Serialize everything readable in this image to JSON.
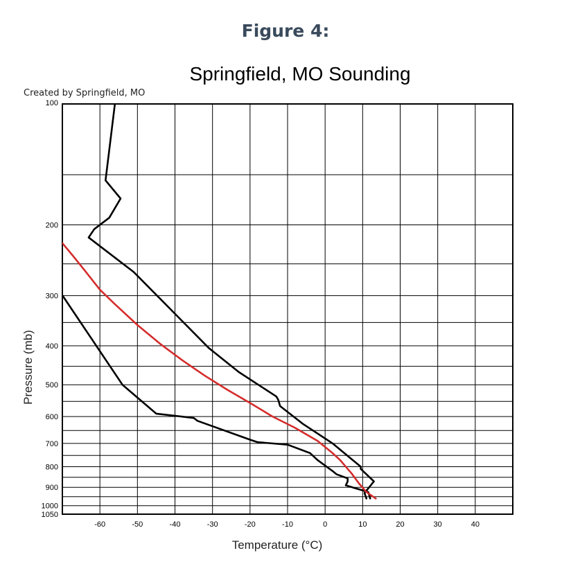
{
  "figure_label": "Figure 4:",
  "chart_data": {
    "type": "line",
    "title": "Springfield, MO  Sounding",
    "subtitle": "Created by Springfield, MO",
    "xlabel": "Temperature (°C)",
    "ylabel": "Pressure (mb)",
    "xlim": [
      -70,
      50
    ],
    "ylim": [
      1050,
      100
    ],
    "y_scale": "log",
    "x_ticks": [
      -60,
      -50,
      -40,
      -30,
      -20,
      -10,
      0,
      10,
      20,
      30,
      40
    ],
    "y_ticks": [
      100,
      200,
      300,
      400,
      500,
      600,
      700,
      800,
      900,
      1000,
      1050
    ],
    "y_gridlines": [
      100,
      150,
      200,
      250,
      300,
      350,
      400,
      450,
      500,
      550,
      600,
      650,
      700,
      750,
      800,
      850,
      900,
      950,
      1000,
      1050
    ],
    "grid": true,
    "series": [
      {
        "color": "#000000",
        "points": [
          [
            11,
            960
          ],
          [
            10.5,
            930
          ],
          [
            13,
            870
          ],
          [
            9.5,
            810
          ],
          [
            9.5,
            800
          ],
          [
            2,
            700
          ],
          [
            -6,
            625
          ],
          [
            -12,
            565
          ],
          [
            -12.5,
            545
          ],
          [
            -13,
            535
          ],
          [
            -23,
            465
          ],
          [
            -31,
            405
          ],
          [
            -44,
            305
          ],
          [
            -51,
            262
          ],
          [
            -63,
            215
          ],
          [
            -61.5,
            205
          ],
          [
            -57.5,
            192
          ],
          [
            -54.5,
            172
          ],
          [
            -58.5,
            155
          ],
          [
            -56,
            100
          ]
        ]
      },
      {
        "color": "#000000",
        "points": [
          [
            12,
            960
          ],
          [
            11.5,
            925
          ],
          [
            5.5,
            890
          ],
          [
            6,
            870
          ],
          [
            6,
            855
          ],
          [
            3,
            835
          ],
          [
            2,
            820
          ],
          [
            -2,
            770
          ],
          [
            -4,
            740
          ],
          [
            -10,
            705
          ],
          [
            -18,
            695
          ],
          [
            -20,
            685
          ],
          [
            -34,
            615
          ],
          [
            -35,
            605
          ],
          [
            -45,
            590
          ],
          [
            -54,
            500
          ],
          [
            -71,
            290
          ],
          [
            -73,
            255
          ],
          [
            -74,
            240
          ]
        ]
      },
      {
        "color": "#d42b2b",
        "points": [
          [
            13.5,
            960
          ],
          [
            11,
            925
          ],
          [
            9,
            880
          ],
          [
            7,
            830
          ],
          [
            6,
            810
          ],
          [
            4,
            770
          ],
          [
            2,
            740
          ],
          [
            -2,
            690
          ],
          [
            -8,
            640
          ],
          [
            -14,
            600
          ],
          [
            -20,
            555
          ],
          [
            -26,
            515
          ],
          [
            -32,
            475
          ],
          [
            -38,
            435
          ],
          [
            -44,
            395
          ],
          [
            -50,
            355
          ],
          [
            -56,
            315
          ],
          [
            -60,
            290
          ],
          [
            -64,
            260
          ],
          [
            -67,
            240
          ],
          [
            -70,
            222
          ],
          [
            -73,
            205
          ]
        ]
      }
    ]
  }
}
